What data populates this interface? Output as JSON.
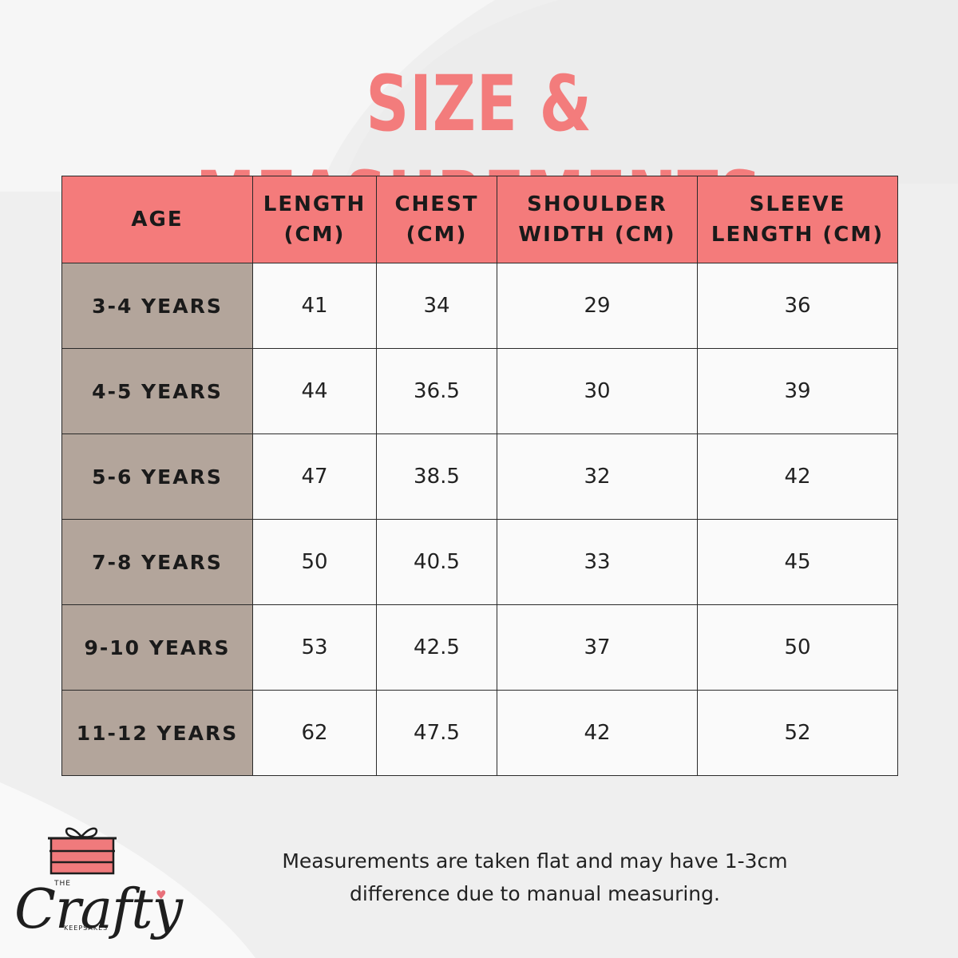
{
  "title": "SIZE & MEASUREMENTS",
  "table": {
    "headers": [
      {
        "line1": "AGE",
        "line2": ""
      },
      {
        "line1": "LENGTH",
        "line2": "(CM)"
      },
      {
        "line1": "CHEST",
        "line2": "(CM)"
      },
      {
        "line1": "SHOULDER",
        "line2": "WIDTH (CM)"
      },
      {
        "line1": "SLEEVE",
        "line2": "LENGTH (CM)"
      }
    ],
    "rows": [
      {
        "age": "3-4 YEARS",
        "length": "41",
        "chest": "34",
        "shoulder": "29",
        "sleeve": "36"
      },
      {
        "age": "4-5 YEARS",
        "length": "44",
        "chest": "36.5",
        "shoulder": "30",
        "sleeve": "39"
      },
      {
        "age": "5-6 YEARS",
        "length": "47",
        "chest": "38.5",
        "shoulder": "32",
        "sleeve": "42"
      },
      {
        "age": "7-8 YEARS",
        "length": "50",
        "chest": "40.5",
        "shoulder": "33",
        "sleeve": "45"
      },
      {
        "age": "9-10 YEARS",
        "length": "53",
        "chest": "42.5",
        "shoulder": "37",
        "sleeve": "50"
      },
      {
        "age": "11-12 YEARS",
        "length": "62",
        "chest": "47.5",
        "shoulder": "42",
        "sleeve": "52"
      }
    ]
  },
  "footnote": {
    "line1": "Measurements are taken flat and may have 1-3cm",
    "line2": "difference due to manual measuring."
  },
  "logo": {
    "the": "THE",
    "name": "Crafty",
    "sub": "KEEPSAKES"
  },
  "colors": {
    "accent": "#f37c7c",
    "header_bg": "#f47b7b",
    "age_column_bg": "#b3a59b",
    "background": "#f1f1f1"
  },
  "icons": [
    "gift-box-icon",
    "heart-icon"
  ]
}
